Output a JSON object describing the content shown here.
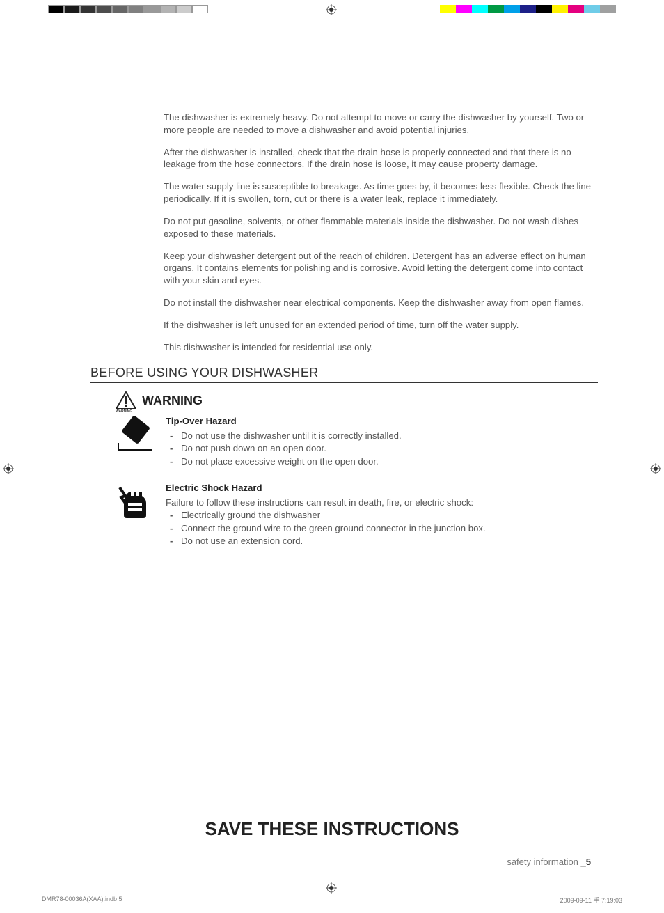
{
  "printerMarks": {
    "grayscale": [
      "#000000",
      "#1a1a1a",
      "#333333",
      "#4d4d4d",
      "#666666",
      "#808080",
      "#999999",
      "#b3b3b3",
      "#cccccc",
      "#ffffff"
    ],
    "colors": [
      "#ffff00",
      "#ff00ff",
      "#00ffff",
      "#009944",
      "#00a0e9",
      "#1d2088",
      "#000000",
      "#fff100",
      "#e4007f",
      "#6fcce8",
      "#9fa0a0"
    ]
  },
  "paragraphs": [
    "The dishwasher is extremely heavy. Do not attempt to move or carry the dishwasher by yourself. Two or more people are needed to move a dishwasher and avoid potential injuries.",
    "After the dishwasher is installed, check that the drain hose is properly connected and that there is no leakage from the hose connectors. If the drain hose is loose, it may cause property damage.",
    "The water supply line is susceptible to breakage. As time goes by, it becomes less flexible. Check the line periodically. If it is swollen, torn, cut or there is a water leak, replace it immediately.",
    "Do not put gasoline, solvents, or other flammable materials inside the dishwasher. Do not wash dishes exposed to these materials.",
    "Keep your dishwasher detergent out of the reach of children. Detergent has an adverse effect on human organs. It contains elements for polishing and is corrosive. Avoid letting the detergent come into contact with your skin and eyes.",
    "Do not install the dishwasher near electrical components. Keep the dishwasher away from open flames.",
    "If the dishwasher is left unused for an extended period of time, turn off the water supply.",
    "This dishwasher is intended for residential use only."
  ],
  "sectionHeading": "BEFORE USING YOUR DISHWASHER",
  "warningTriLabel": "WARNING",
  "warningText": "WARNING",
  "hazards": [
    {
      "title": "Tip-Over Hazard",
      "intro": "",
      "items": [
        "Do not use the dishwasher until it is correctly installed.",
        "Do not push down on an open door.",
        "Do not place excessive weight on the open door."
      ]
    },
    {
      "title": "Electric Shock Hazard",
      "intro": "Failure to follow these instructions can result in death, fire, or electric shock:",
      "items": [
        "Electrically ground the dishwasher",
        "Connect the ground wire to the green ground connector in the junction box.",
        "Do not use an extension cord."
      ]
    }
  ],
  "saveLine": "SAVE THESE INSTRUCTIONS",
  "footerLabel": "safety information _",
  "footerPage": "5",
  "slugFile": "DMR78-00036A(XAA).indb   5",
  "slugDate": "2009-09-11   手 7:19:03"
}
